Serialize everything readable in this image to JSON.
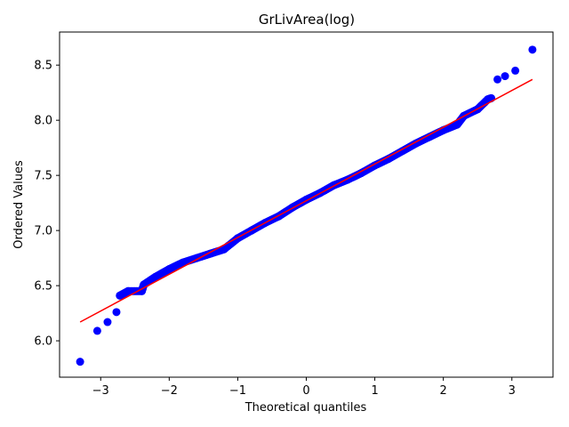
{
  "chart_data": {
    "type": "scatter",
    "title": "GrLivArea(log)",
    "xlabel": "Theoretical quantiles",
    "ylabel": "Ordered Values",
    "xlim": [
      -3.6,
      3.6
    ],
    "ylim": [
      5.67,
      8.8
    ],
    "xticks": [
      -3,
      -2,
      -1,
      0,
      1,
      2,
      3
    ],
    "xtick_labels": [
      "−3",
      "−2",
      "−1",
      "0",
      "1",
      "2",
      "3"
    ],
    "yticks": [
      6.0,
      6.5,
      7.0,
      7.5,
      8.0,
      8.5
    ],
    "ytick_labels": [
      "6.0",
      "6.5",
      "7.0",
      "7.5",
      "8.0",
      "8.5"
    ],
    "grid": false,
    "marker_color": "#0000ff",
    "line_color": "#ff0000",
    "fit_line": {
      "x": [
        -3.3,
        3.3
      ],
      "y": [
        6.17,
        8.37
      ]
    },
    "extreme_points": [
      {
        "x": -3.3,
        "y": 5.81
      },
      {
        "x": -3.05,
        "y": 6.09
      },
      {
        "x": -2.9,
        "y": 6.17
      },
      {
        "x": -2.77,
        "y": 6.26
      },
      {
        "x": 2.79,
        "y": 8.37
      },
      {
        "x": 2.9,
        "y": 8.4
      },
      {
        "x": 3.05,
        "y": 8.45
      },
      {
        "x": 3.3,
        "y": 8.64
      }
    ],
    "curve_points": [
      {
        "x": -2.72,
        "y": 6.41
      },
      {
        "x": -2.6,
        "y": 6.45
      },
      {
        "x": -2.4,
        "y": 6.45
      },
      {
        "x": -2.37,
        "y": 6.51
      },
      {
        "x": -2.2,
        "y": 6.58
      },
      {
        "x": -2.0,
        "y": 6.65
      },
      {
        "x": -1.8,
        "y": 6.71
      },
      {
        "x": -1.6,
        "y": 6.75
      },
      {
        "x": -1.4,
        "y": 6.79
      },
      {
        "x": -1.2,
        "y": 6.83
      },
      {
        "x": -1.0,
        "y": 6.93
      },
      {
        "x": -0.8,
        "y": 7.0
      },
      {
        "x": -0.6,
        "y": 7.07
      },
      {
        "x": -0.4,
        "y": 7.13
      },
      {
        "x": -0.2,
        "y": 7.21
      },
      {
        "x": 0.0,
        "y": 7.28
      },
      {
        "x": 0.2,
        "y": 7.34
      },
      {
        "x": 0.4,
        "y": 7.41
      },
      {
        "x": 0.6,
        "y": 7.46
      },
      {
        "x": 0.8,
        "y": 7.52
      },
      {
        "x": 1.0,
        "y": 7.59
      },
      {
        "x": 1.2,
        "y": 7.65
      },
      {
        "x": 1.4,
        "y": 7.72
      },
      {
        "x": 1.6,
        "y": 7.79
      },
      {
        "x": 1.8,
        "y": 7.85
      },
      {
        "x": 2.0,
        "y": 7.91
      },
      {
        "x": 2.2,
        "y": 7.96
      },
      {
        "x": 2.3,
        "y": 8.04
      },
      {
        "x": 2.5,
        "y": 8.1
      },
      {
        "x": 2.65,
        "y": 8.19
      },
      {
        "x": 2.7,
        "y": 8.2
      }
    ]
  }
}
